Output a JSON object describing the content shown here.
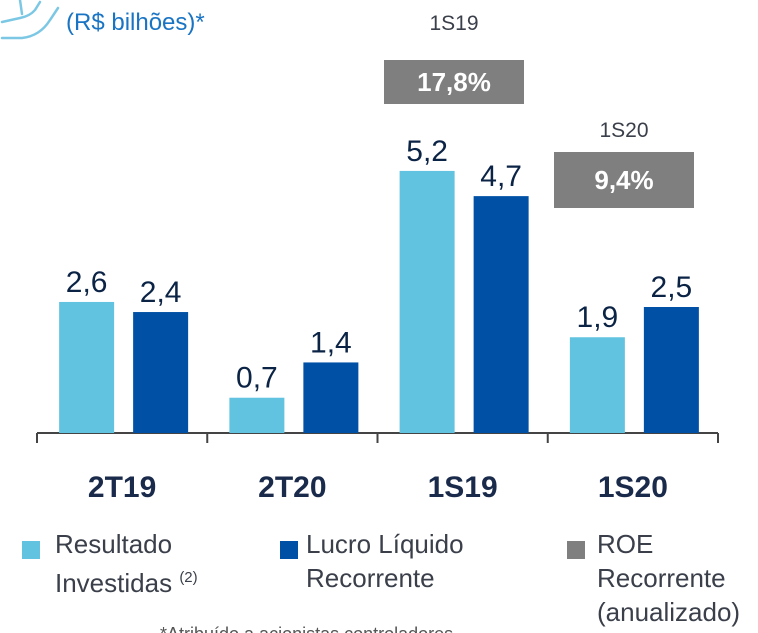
{
  "chart_data": {
    "type": "bar",
    "subtitle": "(R$ bilhões)*",
    "categories": [
      "2T19",
      "2T20",
      "1S19",
      "1S20"
    ],
    "series": [
      {
        "name": "Resultado Investidas",
        "color": "#62c3e0",
        "values": [
          2.6,
          0.7,
          5.2,
          1.9
        ],
        "value_labels": [
          "2,6",
          "0,7",
          "5,2",
          "1,9"
        ]
      },
      {
        "name": "Lucro Líquido Recorrente",
        "color": "#0051a5",
        "values": [
          2.4,
          1.4,
          4.7,
          2.5
        ],
        "value_labels": [
          "2,4",
          "1,4",
          "4,7",
          "2,5"
        ]
      }
    ],
    "legend_note": "(2)",
    "roe": {
      "name": "ROE Recorrente (anualizado)",
      "color": "#7f7f7f",
      "periods": [
        "1S19",
        "1S20"
      ],
      "values": [
        17.8,
        9.4
      ],
      "value_labels": [
        "17,8%",
        "9,4%"
      ]
    },
    "footnote": "*Atribuído a acionistas controladores"
  }
}
